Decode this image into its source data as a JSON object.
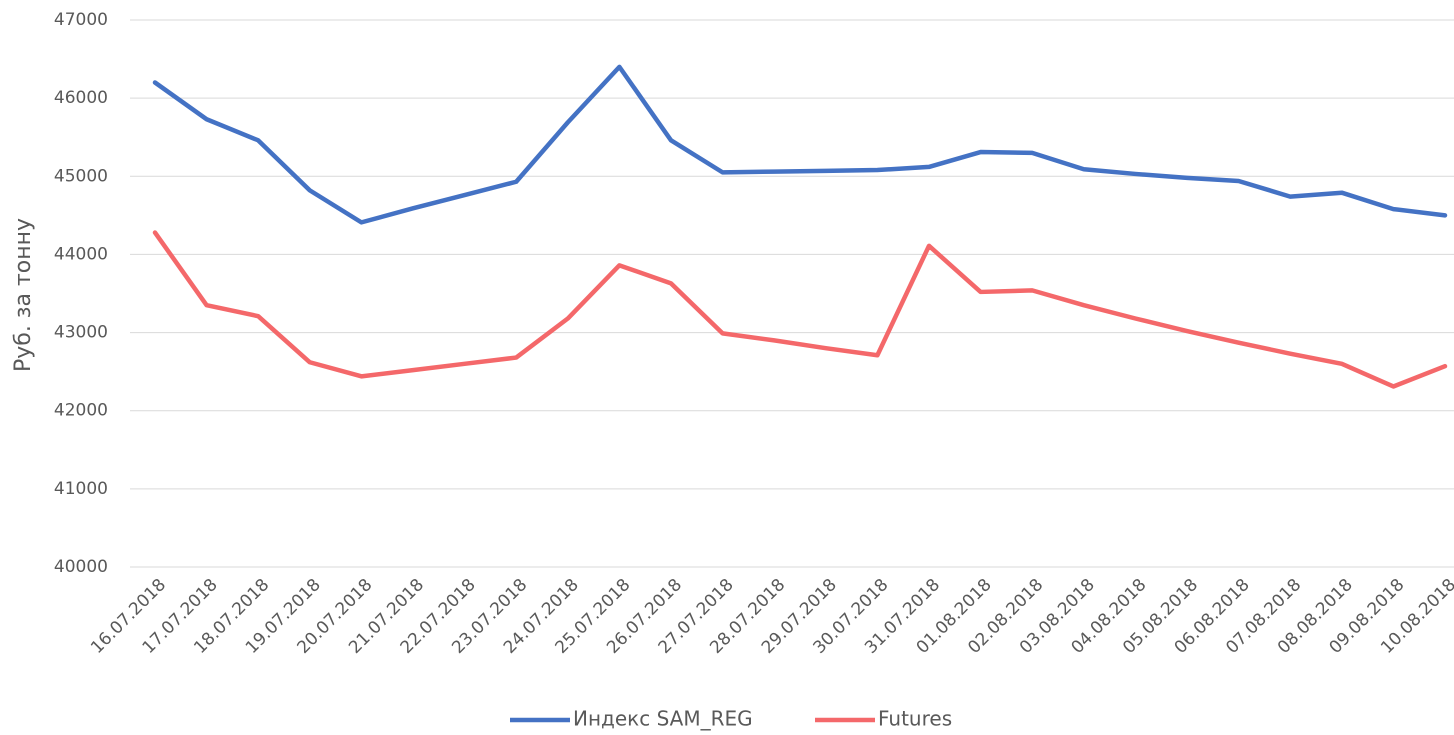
{
  "chart_data": {
    "type": "line",
    "y_label": "Руб. за тонну",
    "categories": [
      "16.07.2018",
      "17.07.2018",
      "18.07.2018",
      "19.07.2018",
      "20.07.2018",
      "21.07.2018",
      "22.07.2018",
      "23.07.2018",
      "24.07.2018",
      "25.07.2018",
      "26.07.2018",
      "27.07.2018",
      "28.07.2018",
      "29.07.2018",
      "30.07.2018",
      "31.07.2018",
      "01.08.2018",
      "02.08.2018",
      "03.08.2018",
      "04.08.2018",
      "05.08.2018",
      "06.08.2018",
      "07.08.2018",
      "08.08.2018",
      "09.08.2018",
      "10.08.2018"
    ],
    "series": [
      {
        "name": "Индекс SAM_REG",
        "color": "#4472c4",
        "values": [
          46200,
          45730,
          45460,
          44820,
          44410,
          44590,
          44760,
          44930,
          45690,
          46400,
          45460,
          45050,
          45060,
          45070,
          45080,
          45120,
          45310,
          45300,
          45090,
          45030,
          44980,
          44940,
          44740,
          44790,
          44580,
          44500
        ]
      },
      {
        "name": "Futures",
        "color": "#f4686a",
        "values": [
          44280,
          43350,
          43210,
          42620,
          42440,
          42520,
          42600,
          42680,
          43180,
          43860,
          43630,
          42990,
          42900,
          42800,
          42710,
          44110,
          43520,
          43540,
          43350,
          43180,
          43020,
          42870,
          42730,
          42600,
          42310,
          42570
        ]
      }
    ],
    "ylim": [
      40000,
      47000
    ],
    "yticks": [
      40000,
      41000,
      42000,
      43000,
      44000,
      45000,
      46000,
      47000
    ],
    "grid": true,
    "legend": "bottom"
  }
}
